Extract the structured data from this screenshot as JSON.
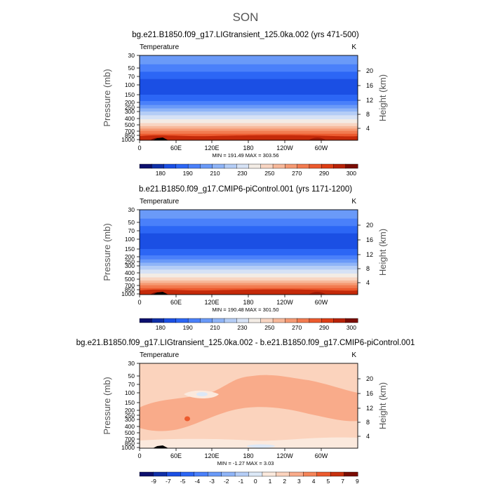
{
  "season": "SON",
  "chart_data": [
    {
      "type": "contour",
      "title": "bg.e21.B1850.f09_g17.LIGtransient_125.0ka.002 (yrs 471-500)",
      "variable": "Temperature",
      "units": "K",
      "ylabel": "Pressure (mb)",
      "ylabel_right": "Height (km)",
      "xticks": [
        "0",
        "60E",
        "120E",
        "180",
        "120W",
        "60W"
      ],
      "yticks": [
        "30",
        "50",
        "70",
        "100",
        "150",
        "200",
        "250",
        "300",
        "400",
        "500",
        "700",
        "850",
        "1000"
      ],
      "yticks_right": [
        "4",
        "8",
        "12",
        "16",
        "20"
      ],
      "stats": "MIN = 191.49   MAX = 303.56",
      "min": 191.49,
      "max": 303.56,
      "colorbar_labels": [
        "180",
        "190",
        "210",
        "230",
        "250",
        "270",
        "290",
        "300"
      ],
      "colorbar_colors": [
        "#0c0f6e",
        "#1030a8",
        "#1b4fe4",
        "#2c66f5",
        "#4a80fa",
        "#6a9af8",
        "#8fb4f7",
        "#b4cdf6",
        "#d6e2f5",
        "#f3ece5",
        "#f8d5c2",
        "#f7b89a",
        "#f59a73",
        "#f27b50",
        "#ec5a2e",
        "#dd3d14",
        "#b82208",
        "#7a0c02"
      ],
      "bands": [
        {
          "p": 30,
          "color": "#6a9af8"
        },
        {
          "p": 43,
          "color": "#4a80fa"
        },
        {
          "p": 58,
          "color": "#2c66f5"
        },
        {
          "p": 78,
          "color": "#1b4fe4"
        },
        {
          "p": 150,
          "color": "#2c66f5"
        },
        {
          "p": 190,
          "color": "#4a80fa"
        },
        {
          "p": 225,
          "color": "#6a9af8"
        },
        {
          "p": 262,
          "color": "#8fb4f7"
        },
        {
          "p": 300,
          "color": "#b4cdf6"
        },
        {
          "p": 350,
          "color": "#d6e2f5"
        },
        {
          "p": 410,
          "color": "#f3ece5"
        },
        {
          "p": 470,
          "color": "#f8d5c2"
        },
        {
          "p": 535,
          "color": "#f7b89a"
        },
        {
          "p": 610,
          "color": "#f59a73"
        },
        {
          "p": 690,
          "color": "#f27b50"
        },
        {
          "p": 790,
          "color": "#ec5a2e"
        },
        {
          "p": 890,
          "color": "#dd3d14"
        },
        {
          "p": 960,
          "color": "#b82208"
        }
      ]
    },
    {
      "type": "contour",
      "title": "b.e21.B1850.f09_g17.CMIP6-piControl.001 (yrs 1171-1200)",
      "variable": "Temperature",
      "units": "K",
      "ylabel": "Pressure (mb)",
      "ylabel_right": "Height (km)",
      "xticks": [
        "0",
        "60E",
        "120E",
        "180",
        "120W",
        "60W"
      ],
      "yticks": [
        "30",
        "50",
        "70",
        "100",
        "150",
        "200",
        "250",
        "300",
        "400",
        "500",
        "700",
        "850",
        "1000"
      ],
      "yticks_right": [
        "4",
        "8",
        "12",
        "16",
        "20"
      ],
      "stats": "MIN = 190.48   MAX = 301.50",
      "min": 190.48,
      "max": 301.5,
      "colorbar_labels": [
        "180",
        "190",
        "210",
        "230",
        "250",
        "270",
        "290",
        "300"
      ],
      "colorbar_colors": [
        "#0c0f6e",
        "#1030a8",
        "#1b4fe4",
        "#2c66f5",
        "#4a80fa",
        "#6a9af8",
        "#8fb4f7",
        "#b4cdf6",
        "#d6e2f5",
        "#f3ece5",
        "#f8d5c2",
        "#f7b89a",
        "#f59a73",
        "#f27b50",
        "#ec5a2e",
        "#dd3d14",
        "#b82208",
        "#7a0c02"
      ],
      "bands": [
        {
          "p": 30,
          "color": "#6a9af8"
        },
        {
          "p": 43,
          "color": "#4a80fa"
        },
        {
          "p": 58,
          "color": "#2c66f5"
        },
        {
          "p": 78,
          "color": "#1b4fe4"
        },
        {
          "p": 150,
          "color": "#2c66f5"
        },
        {
          "p": 190,
          "color": "#4a80fa"
        },
        {
          "p": 225,
          "color": "#6a9af8"
        },
        {
          "p": 262,
          "color": "#8fb4f7"
        },
        {
          "p": 300,
          "color": "#b4cdf6"
        },
        {
          "p": 350,
          "color": "#d6e2f5"
        },
        {
          "p": 410,
          "color": "#f3ece5"
        },
        {
          "p": 470,
          "color": "#f8d5c2"
        },
        {
          "p": 535,
          "color": "#f7b89a"
        },
        {
          "p": 610,
          "color": "#f59a73"
        },
        {
          "p": 690,
          "color": "#f27b50"
        },
        {
          "p": 790,
          "color": "#ec5a2e"
        },
        {
          "p": 890,
          "color": "#dd3d14"
        },
        {
          "p": 960,
          "color": "#b82208"
        }
      ]
    },
    {
      "type": "contour",
      "title": "bg.e21.B1850.f09_g17.LIGtransient_125.0ka.002 - b.e21.B1850.f09_g17.CMIP6-piControl.001",
      "variable": "Temperature",
      "units": "K",
      "ylabel": "Pressure (mb)",
      "ylabel_right": "Height (km)",
      "xticks": [
        "0",
        "60E",
        "120E",
        "180",
        "120W",
        "60W"
      ],
      "yticks": [
        "30",
        "50",
        "70",
        "100",
        "150",
        "200",
        "250",
        "300",
        "400",
        "500",
        "700",
        "850",
        "1000"
      ],
      "yticks_right": [
        "4",
        "8",
        "12",
        "16",
        "20"
      ],
      "stats": "MIN =  -1.27   MAX =   3.03",
      "min": -1.27,
      "max": 3.03,
      "colorbar_labels": [
        "-9",
        "-7",
        "-5",
        "-4",
        "-3",
        "-2",
        "-1",
        "0",
        "1",
        "2",
        "3",
        "4",
        "5",
        "7",
        "9"
      ],
      "colorbar_colors": [
        "#0c0f6e",
        "#1030a8",
        "#1b4fe4",
        "#2c66f5",
        "#4a80fa",
        "#6a9af8",
        "#8fb4f7",
        "#b4cdf6",
        "#dce8f7",
        "#fbe9dd",
        "#fbd3bd",
        "#f9ab8a",
        "#f58458",
        "#ec5a2e",
        "#c8310e",
        "#7a0c02"
      ],
      "base_color": "#fbd3bd",
      "warm_color": "#f9ab8a",
      "weak_color": "#fbe9dd",
      "cool_color": "#dce8f7"
    }
  ]
}
